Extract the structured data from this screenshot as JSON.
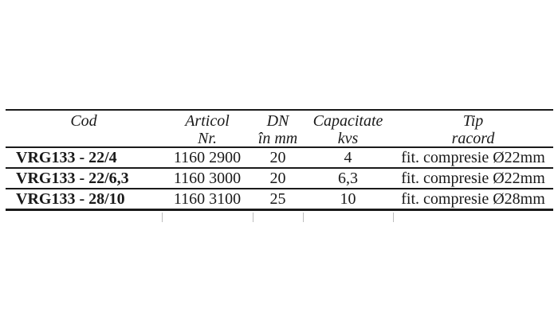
{
  "page": {
    "background_color": "#ffffff",
    "text_color": "#1a1a1a",
    "rule_color": "#1a1a1a"
  },
  "table": {
    "headers": [
      {
        "line1": "Cod",
        "line2": ""
      },
      {
        "line1": "Articol",
        "line2": "Nr."
      },
      {
        "line1": "DN",
        "line2": "în mm"
      },
      {
        "line1": "Capacitate",
        "line2": "kvs"
      },
      {
        "line1": "Tip",
        "line2": "racord"
      }
    ],
    "rows": [
      {
        "cod": "VRG133 - 22/4",
        "articol": "1160 2900",
        "dn": "20",
        "capacitate": "4",
        "tip": "fit. compresie Ø22mm"
      },
      {
        "cod": "VRG133 - 22/6,3",
        "articol": "1160 3000",
        "dn": "20",
        "capacitate": "6,3",
        "tip": "fit. compresie Ø22mm"
      },
      {
        "cod": "VRG133 - 28/10",
        "articol": "1160 3100",
        "dn": "25",
        "capacitate": "10",
        "tip": "fit. compresie Ø28mm"
      }
    ]
  }
}
